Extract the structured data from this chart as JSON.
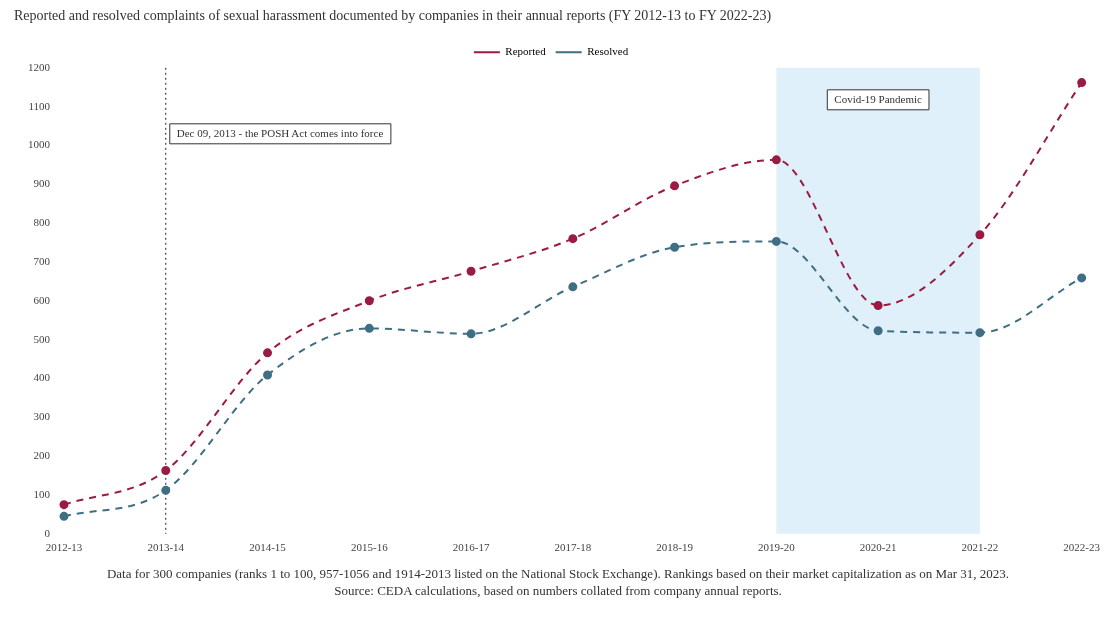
{
  "chart_data": {
    "type": "line",
    "title": "Reported and resolved complaints of sexual harassment documented by companies in their annual reports (FY 2012-13 to FY 2022-23)",
    "categories": [
      "2012-13",
      "2013-14",
      "2014-15",
      "2015-16",
      "2016-17",
      "2017-18",
      "2018-19",
      "2019-20",
      "2020-21",
      "2021-22",
      "2022-23"
    ],
    "series": [
      {
        "name": "Reported",
        "color": "#9b1b42",
        "values": [
          75,
          163,
          466,
          600,
          676,
          760,
          896,
          963,
          588,
          770,
          1162
        ]
      },
      {
        "name": "Resolved",
        "color": "#3f6e85",
        "values": [
          45,
          112,
          409,
          529,
          515,
          636,
          738,
          753,
          523,
          518,
          659
        ]
      }
    ],
    "ylim": [
      0,
      1200
    ],
    "yticks": [
      0,
      100,
      200,
      300,
      400,
      500,
      600,
      700,
      800,
      900,
      1000,
      1100,
      1200
    ],
    "grid": false,
    "legend": "top",
    "marker": "circle",
    "line_style": "dashed",
    "ref_lines": [
      {
        "axis": "x",
        "value": "2013-14",
        "label": "Dec 09, 2013 - the POSH Act comes into force",
        "color": "#222222",
        "line_style": "dotted"
      }
    ],
    "bands": [
      {
        "axis": "x",
        "from": "2019-20",
        "to": "2021-22",
        "label": "Covid-19 Pandemic",
        "color": "#dff0fa"
      }
    ],
    "annotations": [
      "Data for 300 companies (ranks 1 to 100, 957-1056 and 1914-2013 listed on the National Stock Exchange). Rankings based on their market capitalization as on Mar 31, 2023. Source: CEDA calculations, based on numbers collated from company annual reports."
    ]
  }
}
